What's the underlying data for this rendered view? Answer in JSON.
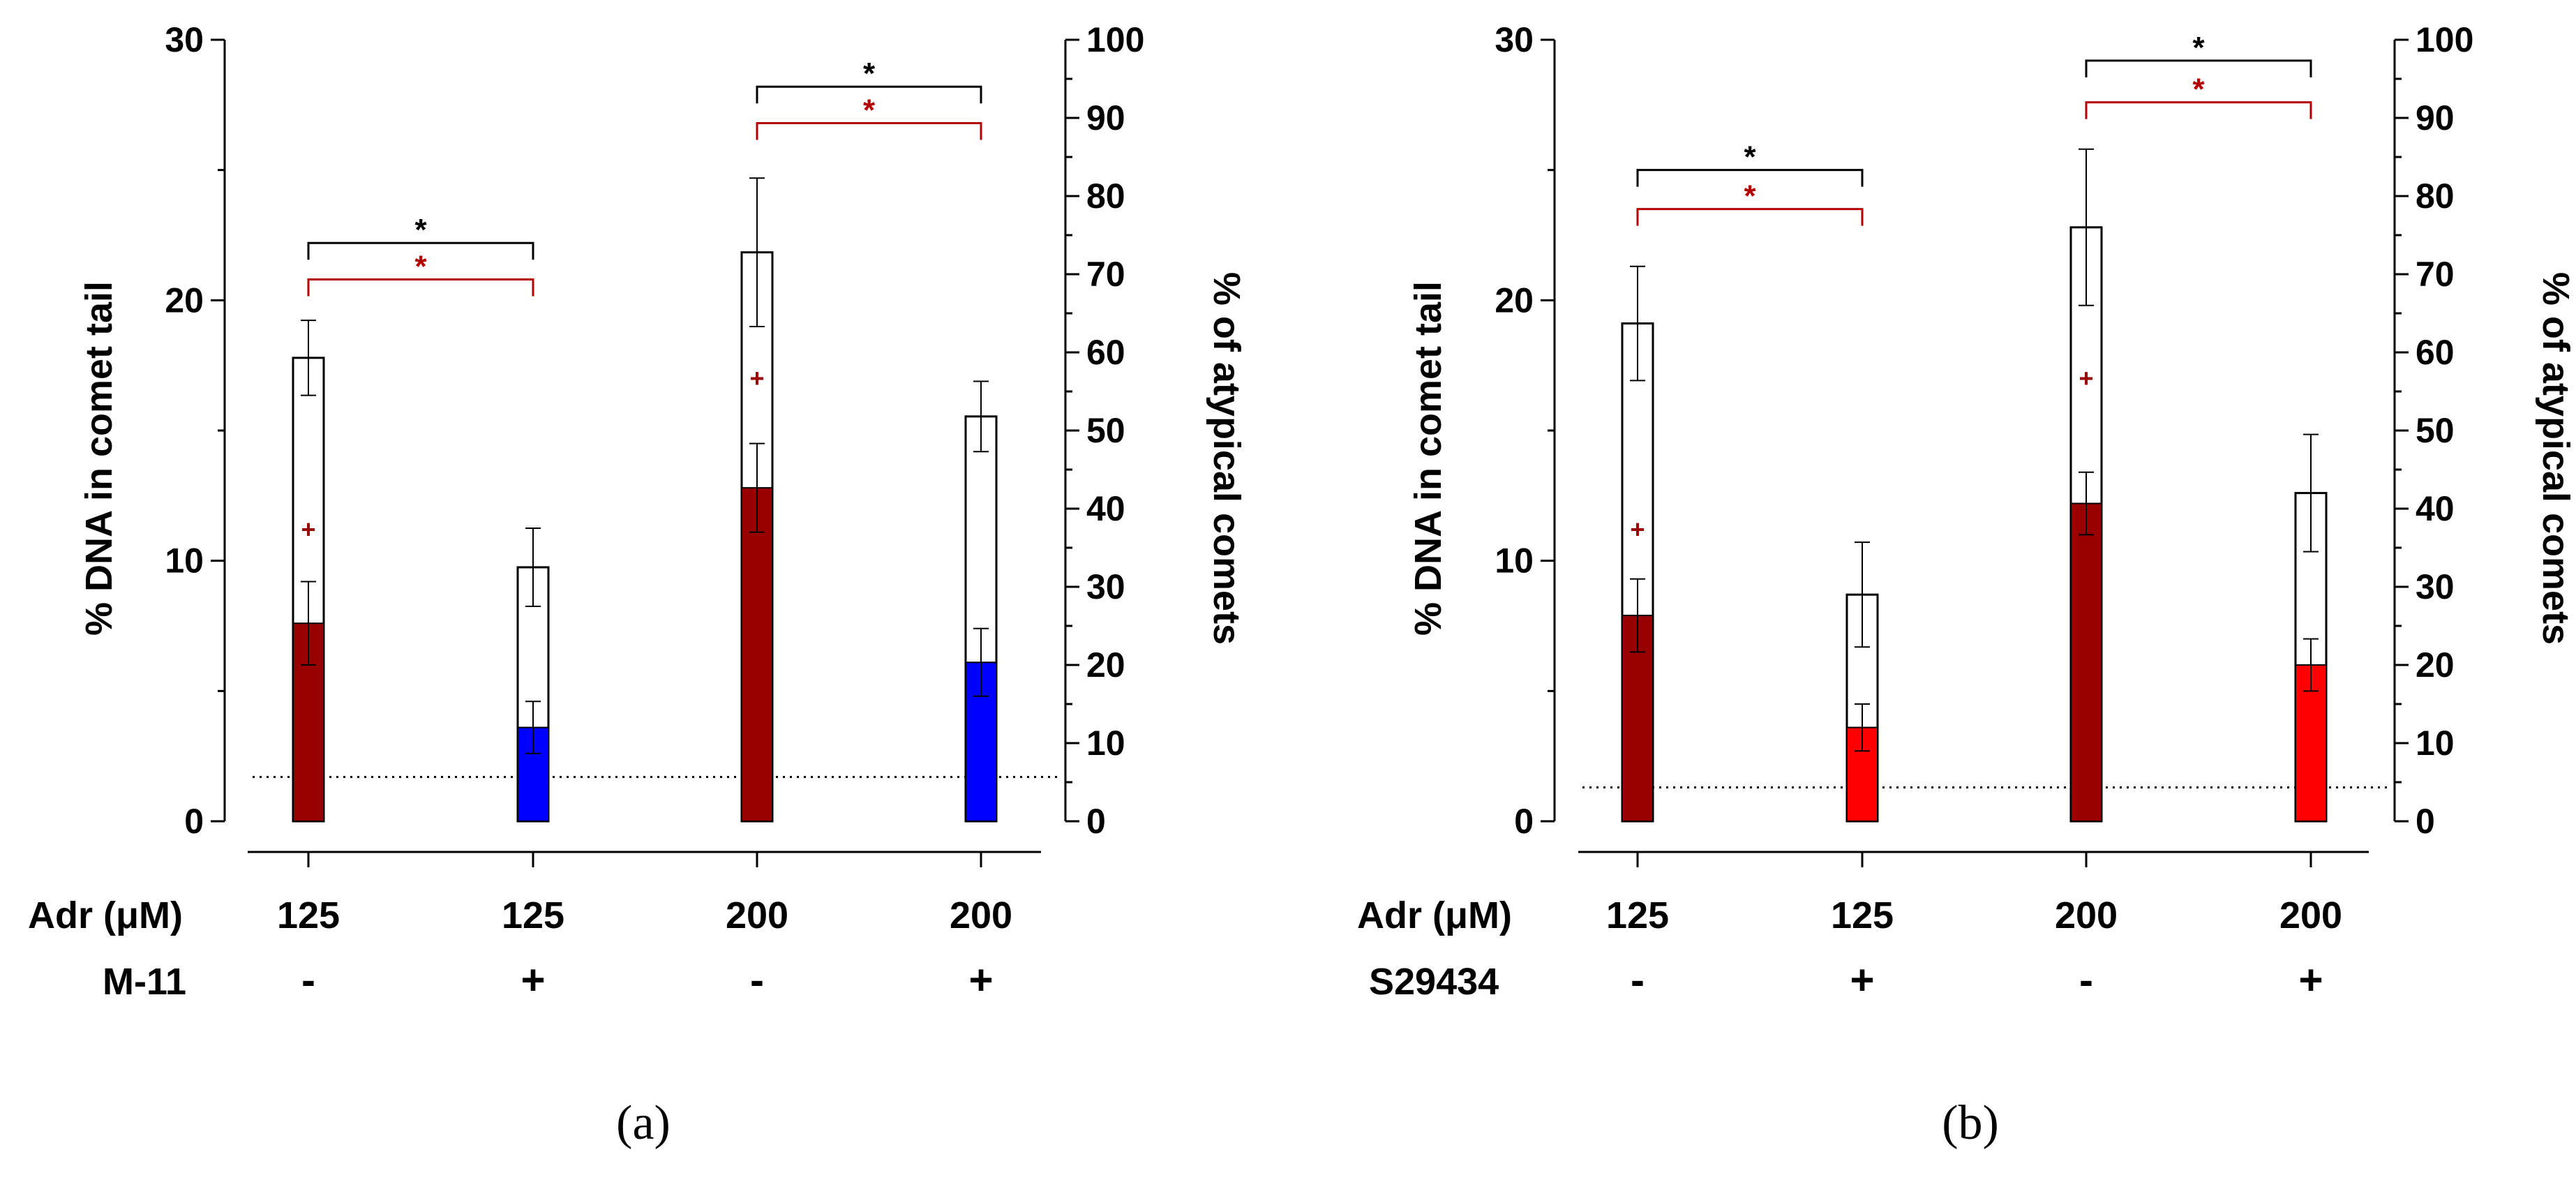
{
  "colors": {
    "axis": "#000000",
    "sig_black": "#000000",
    "sig_red": "#b30000",
    "dark_red": "#990000",
    "blue": "#0000ff",
    "bright_red": "#ff0000",
    "mean_marker": "#990000",
    "baseline": "#000000"
  },
  "chart_data": [
    {
      "type": "bar",
      "panel_label": "(a)",
      "y_left_label": "% DNA in comet tail",
      "y_right_label": "% of atypical comets",
      "y_left_lim": [
        0,
        30
      ],
      "y_left_ticks": [
        "0",
        "10",
        "20",
        "30"
      ],
      "y_right_lim": [
        0,
        100
      ],
      "y_right_ticks": [
        "0",
        "10",
        "20",
        "30",
        "40",
        "50",
        "60",
        "70",
        "80",
        "90",
        "100"
      ],
      "row_labels": [
        "Adr (μM)",
        "M-11"
      ],
      "categories": [
        {
          "adr": "125",
          "treat": "-"
        },
        {
          "adr": "125",
          "treat": "+"
        },
        {
          "adr": "200",
          "treat": "-"
        },
        {
          "adr": "200",
          "treat": "+"
        }
      ],
      "series": [
        {
          "name": "% of atypical comets",
          "axis": "right",
          "style": "open",
          "values": [
            59.3,
            32.5,
            72.8,
            51.8
          ],
          "err": [
            4.8,
            5.0,
            9.5,
            4.5
          ]
        },
        {
          "name": "% DNA in comet tail",
          "axis": "left",
          "style": "filled",
          "fill_colors": [
            "#990000",
            "#0000ff",
            "#990000",
            "#0000ff"
          ],
          "values": [
            7.6,
            3.6,
            12.8,
            6.1
          ],
          "err": [
            1.6,
            1.0,
            1.7,
            1.3
          ]
        }
      ],
      "mean_markers": [
        {
          "index": 0,
          "value": 11.2,
          "symbol": "+"
        },
        {
          "index": 2,
          "value": 17.0,
          "symbol": "+"
        }
      ],
      "baseline_left": 1.7,
      "significance": [
        {
          "from": 0,
          "to": 1,
          "level": 22.2,
          "label": "*",
          "color": "#000000"
        },
        {
          "from": 0,
          "to": 1,
          "level": 20.8,
          "label": "*",
          "color": "#b30000"
        },
        {
          "from": 2,
          "to": 3,
          "level": 28.2,
          "label": "*",
          "color": "#000000"
        },
        {
          "from": 2,
          "to": 3,
          "level": 26.8,
          "label": "*",
          "color": "#b30000"
        }
      ]
    },
    {
      "type": "bar",
      "panel_label": "(b)",
      "y_left_label": "% DNA in comet tail",
      "y_right_label": "% of atypical comets",
      "y_left_lim": [
        0,
        30
      ],
      "y_left_ticks": [
        "0",
        "10",
        "20",
        "30"
      ],
      "y_right_lim": [
        0,
        100
      ],
      "y_right_ticks": [
        "0",
        "10",
        "20",
        "30",
        "40",
        "50",
        "60",
        "70",
        "80",
        "90",
        "100"
      ],
      "row_labels": [
        "Adr (μM)",
        "S29434"
      ],
      "categories": [
        {
          "adr": "125",
          "treat": "-"
        },
        {
          "adr": "125",
          "treat": "+"
        },
        {
          "adr": "200",
          "treat": "-"
        },
        {
          "adr": "200",
          "treat": "+"
        }
      ],
      "series": [
        {
          "name": "% of atypical comets",
          "axis": "right",
          "style": "open",
          "values": [
            63.7,
            29.0,
            76.0,
            42.0
          ],
          "err": [
            7.3,
            6.7,
            10.0,
            7.5
          ]
        },
        {
          "name": "% DNA in comet tail",
          "axis": "left",
          "style": "filled",
          "fill_colors": [
            "#990000",
            "#ff0000",
            "#990000",
            "#ff0000"
          ],
          "values": [
            7.9,
            3.6,
            12.2,
            6.0
          ],
          "err": [
            1.4,
            0.9,
            1.2,
            1.0
          ]
        }
      ],
      "mean_markers": [
        {
          "index": 0,
          "value": 11.2,
          "symbol": "+"
        },
        {
          "index": 2,
          "value": 17.0,
          "symbol": "+"
        }
      ],
      "baseline_left": 1.3,
      "significance": [
        {
          "from": 0,
          "to": 1,
          "level": 25.0,
          "label": "*",
          "color": "#000000"
        },
        {
          "from": 0,
          "to": 1,
          "level": 23.5,
          "label": "*",
          "color": "#b30000"
        },
        {
          "from": 2,
          "to": 3,
          "level": 29.2,
          "label": "*",
          "color": "#000000"
        },
        {
          "from": 2,
          "to": 3,
          "level": 27.6,
          "label": "*",
          "color": "#b30000"
        }
      ]
    }
  ]
}
